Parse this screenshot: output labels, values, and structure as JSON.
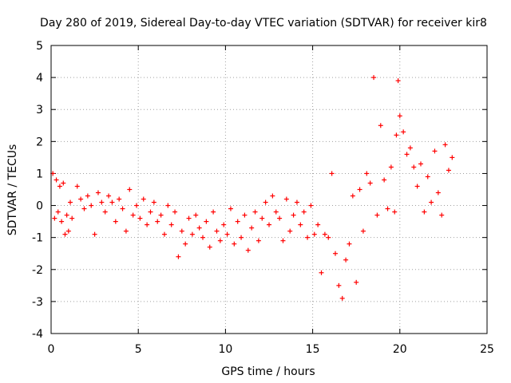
{
  "chart_data": {
    "type": "scatter",
    "title": "Day 280 of 2019, Sidereal Day-to-day VTEC variation (SDTVAR) for receiver kir8",
    "xlabel": "GPS time / hours",
    "ylabel": "SDTVAR / TECUs",
    "xlim": [
      0,
      25
    ],
    "ylim": [
      -4,
      5
    ],
    "xticks": [
      "0",
      "5",
      "10",
      "15",
      "20",
      "25"
    ],
    "yticks": [
      "-4",
      "-3",
      "-2",
      "-1",
      "0",
      "1",
      "2",
      "3",
      "4",
      "5"
    ],
    "grid": true,
    "marker": "+",
    "color": "#ff0000",
    "series": [
      {
        "name": "SDTVAR",
        "x": [
          0.1,
          0.2,
          0.3,
          0.4,
          0.5,
          0.6,
          0.7,
          0.8,
          0.9,
          1.0,
          1.1,
          1.2,
          1.5,
          1.7,
          1.9,
          2.1,
          2.3,
          2.5,
          2.7,
          2.9,
          3.1,
          3.3,
          3.5,
          3.7,
          3.9,
          4.1,
          4.3,
          4.5,
          4.7,
          4.9,
          5.1,
          5.3,
          5.5,
          5.7,
          5.9,
          6.1,
          6.3,
          6.5,
          6.7,
          6.9,
          7.1,
          7.3,
          7.5,
          7.7,
          7.9,
          8.1,
          8.3,
          8.5,
          8.7,
          8.9,
          9.1,
          9.3,
          9.5,
          9.7,
          9.9,
          10.1,
          10.3,
          10.5,
          10.7,
          10.9,
          11.1,
          11.3,
          11.5,
          11.7,
          11.9,
          12.1,
          12.3,
          12.5,
          12.7,
          12.9,
          13.1,
          13.3,
          13.5,
          13.7,
          13.9,
          14.1,
          14.3,
          14.5,
          14.7,
          14.9,
          15.1,
          15.3,
          15.5,
          15.7,
          15.9,
          16.1,
          16.3,
          16.5,
          16.7,
          16.9,
          17.1,
          17.3,
          17.5,
          17.7,
          17.9,
          18.1,
          18.3,
          18.5,
          18.7,
          18.9,
          19.1,
          19.3,
          19.5,
          19.7,
          19.8,
          19.9,
          20.0,
          20.2,
          20.4,
          20.6,
          20.8,
          21.0,
          21.2,
          21.4,
          21.6,
          21.8,
          22.0,
          22.2,
          22.4,
          22.6,
          22.8,
          23.0
        ],
        "y": [
          1.0,
          -0.4,
          0.8,
          -0.2,
          0.6,
          -0.5,
          0.7,
          -0.9,
          -0.3,
          -0.8,
          0.1,
          -0.4,
          0.6,
          0.2,
          -0.1,
          0.3,
          0.0,
          -0.9,
          0.4,
          0.1,
          -0.2,
          0.3,
          0.1,
          -0.5,
          0.2,
          -0.1,
          -0.8,
          0.5,
          -0.3,
          0.0,
          -0.4,
          0.2,
          -0.6,
          -0.2,
          0.1,
          -0.5,
          -0.3,
          -0.9,
          0.0,
          -0.6,
          -0.2,
          -1.6,
          -0.8,
          -1.2,
          -0.4,
          -0.9,
          -0.3,
          -0.7,
          -1.0,
          -0.5,
          -1.3,
          -0.2,
          -0.8,
          -1.1,
          -0.6,
          -0.9,
          -0.1,
          -1.2,
          -0.5,
          -1.0,
          -0.3,
          -1.4,
          -0.7,
          -0.2,
          -1.1,
          -0.4,
          0.1,
          -0.6,
          0.3,
          -0.2,
          -0.4,
          -1.1,
          0.2,
          -0.8,
          -0.3,
          0.1,
          -0.6,
          -0.2,
          -1.0,
          0.0,
          -0.9,
          -0.6,
          -2.1,
          -0.9,
          -1.0,
          1.0,
          -1.5,
          -2.5,
          -2.9,
          -1.7,
          -1.2,
          0.3,
          -2.4,
          0.5,
          -0.8,
          1.0,
          0.7,
          4.0,
          -0.3,
          2.5,
          0.8,
          -0.1,
          1.2,
          -0.2,
          2.2,
          3.9,
          2.8,
          2.3,
          1.6,
          1.8,
          1.2,
          0.6,
          1.3,
          -0.2,
          0.9,
          0.1,
          1.7,
          0.4,
          -0.3,
          1.9,
          1.1,
          1.5
        ]
      }
    ]
  }
}
